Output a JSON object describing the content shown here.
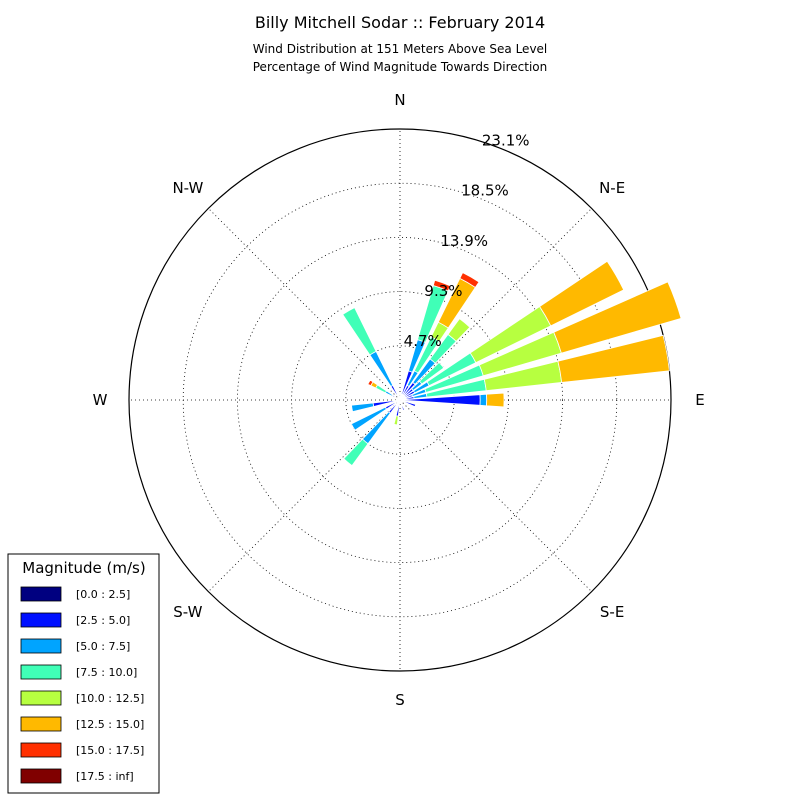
{
  "chart_data": {
    "type": "windrose",
    "title": "Billy Mitchell Sodar :: February 2014",
    "subtitle_lines": [
      "Wind Distribution at 151 Meters Above Sea Level",
      "Percentage of Wind Magnitude Towards Direction"
    ],
    "direction_labels": [
      "N",
      "N-E",
      "E",
      "S-E",
      "S",
      "S-W",
      "W",
      "N-W"
    ],
    "ring_labels": [
      "4.7%",
      "9.3%",
      "13.9%",
      "18.5%",
      "23.1%"
    ],
    "radial_max": 25,
    "grid": true,
    "legend": {
      "title": "Magnitude (m/s)",
      "placement": "bottom-left",
      "entries": [
        {
          "label": "[0.0 : 2.5]",
          "color": "#000080"
        },
        {
          "label": "[2.5 : 5.0]",
          "color": "#0010ff"
        },
        {
          "label": "[5.0 : 7.5]",
          "color": "#00a4ff"
        },
        {
          "label": "[7.5 : 10.0]",
          "color": "#40ffb7"
        },
        {
          "label": "[10.0 : 12.5]",
          "color": "#b7ff40"
        },
        {
          "label": "[12.5 : 15.0]",
          "color": "#ffb900"
        },
        {
          "label": "[15.0 : 17.5]",
          "color": "#ff3000"
        },
        {
          "label": "[17.5 : inf]",
          "color": "#800000"
        }
      ]
    },
    "direction_bins": [
      {
        "direction": 0,
        "cumulative": [
          0.2,
          0.4
        ]
      },
      {
        "direction": 10,
        "cumulative": [
          0.3,
          0.7
        ]
      },
      {
        "direction": 20,
        "cumulative": [
          0.5,
          2.8,
          5.8,
          11.0,
          11.0,
          11.0,
          11.5
        ]
      },
      {
        "direction": 30,
        "cumulative": [
          0.3,
          1.5,
          3.0,
          6.5,
          8.0,
          12.5,
          13.1
        ]
      },
      {
        "direction": 40,
        "cumulative": [
          0.3,
          2.0,
          4.7,
          7.5,
          9.3
        ]
      },
      {
        "direction": 50,
        "cumulative": [
          0.3,
          1.5,
          2.5,
          5.0
        ]
      },
      {
        "direction": 60,
        "cumulative": [
          0.5,
          1.5,
          3.0,
          7.8,
          15.5,
          23.0
        ]
      },
      {
        "direction": 70,
        "cumulative": [
          0.6,
          1.2,
          2.5,
          8.0,
          15.5,
          27.0
        ]
      },
      {
        "direction": 80,
        "cumulative": [
          0.3,
          1.3,
          2.5,
          8.0,
          15.0,
          25.0
        ]
      },
      {
        "direction": 90,
        "cumulative": [
          0.4,
          7.4,
          8.0,
          8.0,
          8.0,
          9.6
        ]
      },
      {
        "direction": 110,
        "cumulative": [
          0.3,
          1.5
        ]
      },
      {
        "direction": 160,
        "cumulative": [
          0.3,
          1.0
        ]
      },
      {
        "direction": 190,
        "cumulative": [
          0.3,
          1.5,
          1.5,
          1.5,
          2.3
        ]
      },
      {
        "direction": 220,
        "cumulative": [
          0.3,
          1.5,
          5.0,
          7.5
        ]
      },
      {
        "direction": 240,
        "cumulative": [
          0.3,
          1.5,
          5.0,
          5.0
        ]
      },
      {
        "direction": 260,
        "cumulative": [
          0.3,
          2.5,
          4.5
        ]
      },
      {
        "direction": 300,
        "cumulative": [
          0.3,
          0.8,
          1.5,
          2.5,
          2.5,
          3.0,
          3.3
        ]
      },
      {
        "direction": 330,
        "cumulative": [
          0.3,
          1.5,
          5.0,
          9.5
        ]
      }
    ]
  }
}
